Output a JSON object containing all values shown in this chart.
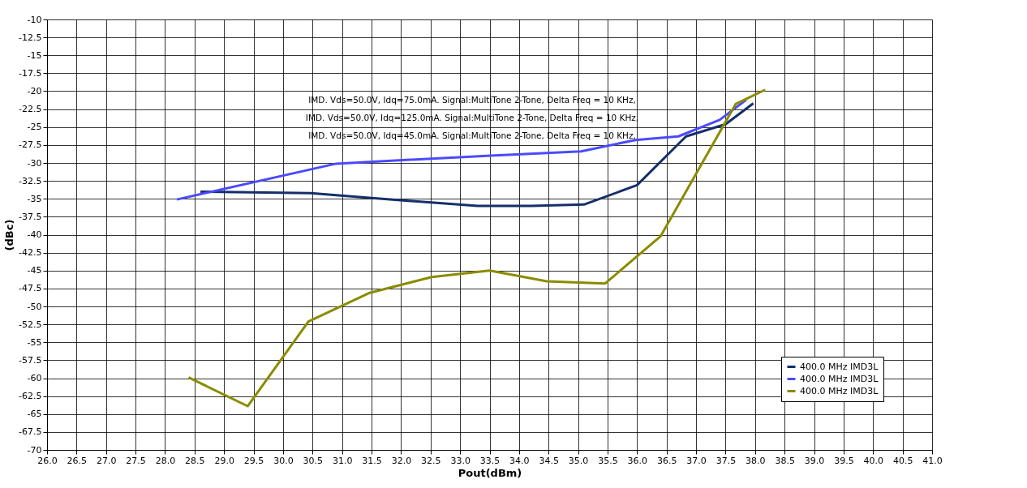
{
  "chart_data": {
    "type": "line",
    "xlabel": "Pout(dBm)",
    "ylabel": "(dBc)",
    "series": [
      {
        "name": "400.0 MHz IMD3L",
        "color": "#142f6b",
        "x": [
          28.6,
          30.47,
          31.5,
          33.3,
          34.2,
          35.1,
          36.0,
          36.83,
          37.5,
          37.97
        ],
        "values": [
          -34.0,
          -34.2,
          -34.9,
          -36.0,
          -36.0,
          -35.8,
          -33.1,
          -26.3,
          -24.6,
          -21.7
        ]
      },
      {
        "name": "400.0 MHz IMD3L",
        "color": "#4a4aff",
        "x": [
          28.2,
          30.9,
          33.45,
          35.05,
          35.97,
          36.7,
          37.4,
          37.85
        ],
        "values": [
          -35.1,
          -30.1,
          -29.0,
          -28.4,
          -26.8,
          -26.3,
          -24.0,
          -21.2
        ]
      },
      {
        "name": "400.0 MHz IMD3L",
        "color": "#8b8b00",
        "x": [
          28.4,
          29.4,
          30.43,
          31.47,
          32.52,
          33.5,
          34.47,
          35.46,
          36.4,
          37.67,
          38.17
        ],
        "values": [
          -59.9,
          -63.9,
          -52.1,
          -48.1,
          -45.9,
          -45.0,
          -46.5,
          -46.8,
          -40.2,
          -21.8,
          -19.8
        ]
      }
    ],
    "annotations": [
      "IMD. Vds=50.0V, Idq=75.0mA. Signal:MultiTone 2-Tone, Delta Freq = 10 KHz,",
      "IMD. Vds=50.0V, Idq=125.0mA. Signal:MultiTone 2-Tone, Delta Freq = 10 KHz,",
      "IMD. Vds=50.0V, Idq=45.0mA. Signal:MultiTone 2-Tone, Delta Freq = 10 KHz,"
    ],
    "xlim": [
      26.0,
      41.0
    ],
    "xticks": [
      {
        "value": 26,
        "label": "26.0"
      },
      {
        "value": 26.5,
        "label": "26.5"
      },
      {
        "value": 27,
        "label": "27.0"
      },
      {
        "value": 27.5,
        "label": "27.5"
      },
      {
        "value": 28,
        "label": "28.0"
      },
      {
        "value": 28.5,
        "label": "28.5"
      },
      {
        "value": 29,
        "label": "29.0"
      },
      {
        "value": 29.5,
        "label": "29.5"
      },
      {
        "value": 30,
        "label": "30.0"
      },
      {
        "value": 30.5,
        "label": "30.5"
      },
      {
        "value": 31,
        "label": "31.0"
      },
      {
        "value": 31.5,
        "label": "31.5"
      },
      {
        "value": 32,
        "label": "32.0"
      },
      {
        "value": 32.5,
        "label": "32.5"
      },
      {
        "value": 33,
        "label": "33.0"
      },
      {
        "value": 33.5,
        "label": "33.5"
      },
      {
        "value": 34,
        "label": "34.0"
      },
      {
        "value": 34.5,
        "label": "34.5"
      },
      {
        "value": 35,
        "label": "35.0"
      },
      {
        "value": 35.5,
        "label": "35.5"
      },
      {
        "value": 36,
        "label": "36.0"
      },
      {
        "value": 36.5,
        "label": "36.5"
      },
      {
        "value": 37,
        "label": "37.0"
      },
      {
        "value": 37.5,
        "label": "37.5"
      },
      {
        "value": 38,
        "label": "38.0"
      },
      {
        "value": 38.5,
        "label": "38.5"
      },
      {
        "value": 39,
        "label": "39.0"
      },
      {
        "value": 39.5,
        "label": "39.5"
      },
      {
        "value": 40,
        "label": "40.0"
      },
      {
        "value": 40.5,
        "label": "40.5"
      },
      {
        "value": 41,
        "label": "41.0"
      }
    ],
    "ylim": [
      -70,
      -10
    ],
    "yticks": [
      -70,
      -67.5,
      -65,
      -62.5,
      -60,
      -57.5,
      -55,
      -52.5,
      -50,
      -47.5,
      -45,
      -42.5,
      -40,
      -37.5,
      -35,
      -32.5,
      -30,
      -27.5,
      -25,
      -22.5,
      -20,
      -17.5,
      -15,
      -12.5,
      -10
    ],
    "grid": true,
    "legend": "bottom right",
    "marker": "none",
    "line_style": "solid"
  }
}
